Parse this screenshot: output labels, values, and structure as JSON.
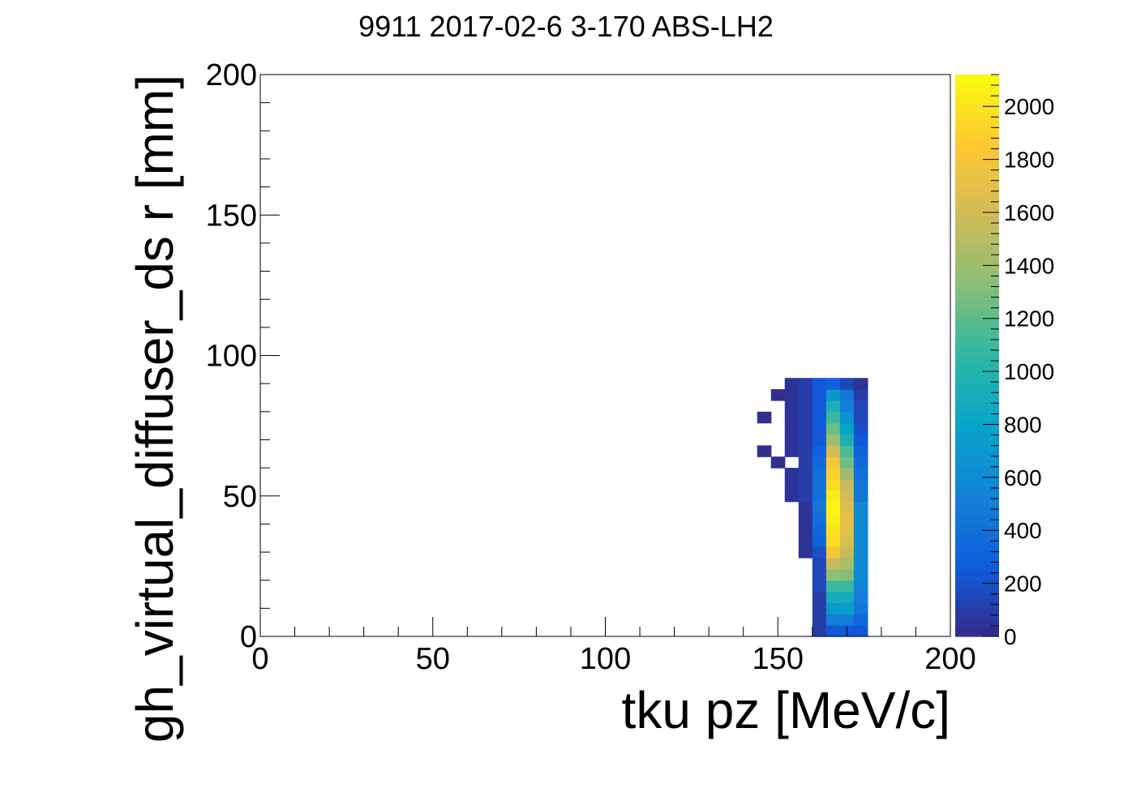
{
  "chart_data": {
    "type": "heatmap",
    "title": "9911 2017-02-6 3-170 ABS-LH2",
    "xlabel": "tku pz [MeV/c]",
    "ylabel": "gh_virtual_diffuser_ds r [mm]",
    "xlim": [
      0,
      200
    ],
    "ylim": [
      0,
      200
    ],
    "x_ticks": [
      "0",
      "50",
      "100",
      "150",
      "200"
    ],
    "y_ticks": [
      "0",
      "50",
      "100",
      "150",
      "200"
    ],
    "bin_width": 4,
    "colorbar": {
      "min": 0,
      "max": 2120,
      "ticks": [
        "0",
        "200",
        "400",
        "600",
        "800",
        "1000",
        "1200",
        "1400",
        "1600",
        "1800",
        "2000"
      ],
      "palette": [
        "#352a87",
        "#0f5cdd",
        "#1481d6",
        "#06a4ca",
        "#2eb7a4",
        "#87bf77",
        "#d1bb59",
        "#fec832",
        "#f9fb0e"
      ]
    },
    "cells": [
      {
        "x": 160,
        "y": 0,
        "v": 100
      },
      {
        "x": 164,
        "y": 0,
        "v": 250
      },
      {
        "x": 168,
        "y": 0,
        "v": 250
      },
      {
        "x": 172,
        "y": 0,
        "v": 250
      },
      {
        "x": 160,
        "y": 4,
        "v": 100
      },
      {
        "x": 164,
        "y": 4,
        "v": 500
      },
      {
        "x": 168,
        "y": 4,
        "v": 500
      },
      {
        "x": 172,
        "y": 4,
        "v": 350
      },
      {
        "x": 160,
        "y": 8,
        "v": 100
      },
      {
        "x": 164,
        "y": 8,
        "v": 700
      },
      {
        "x": 168,
        "y": 8,
        "v": 750
      },
      {
        "x": 172,
        "y": 8,
        "v": 450
      },
      {
        "x": 160,
        "y": 12,
        "v": 100
      },
      {
        "x": 164,
        "y": 12,
        "v": 900
      },
      {
        "x": 168,
        "y": 12,
        "v": 900
      },
      {
        "x": 172,
        "y": 12,
        "v": 500
      },
      {
        "x": 160,
        "y": 16,
        "v": 150
      },
      {
        "x": 164,
        "y": 16,
        "v": 1100
      },
      {
        "x": 168,
        "y": 16,
        "v": 1100
      },
      {
        "x": 172,
        "y": 16,
        "v": 550
      },
      {
        "x": 160,
        "y": 20,
        "v": 150
      },
      {
        "x": 164,
        "y": 20,
        "v": 1350
      },
      {
        "x": 168,
        "y": 20,
        "v": 1300
      },
      {
        "x": 172,
        "y": 20,
        "v": 600
      },
      {
        "x": 160,
        "y": 24,
        "v": 150
      },
      {
        "x": 164,
        "y": 24,
        "v": 1550
      },
      {
        "x": 168,
        "y": 24,
        "v": 1450
      },
      {
        "x": 172,
        "y": 24,
        "v": 600
      },
      {
        "x": 156,
        "y": 28,
        "v": 50
      },
      {
        "x": 160,
        "y": 28,
        "v": 200
      },
      {
        "x": 164,
        "y": 28,
        "v": 1800
      },
      {
        "x": 168,
        "y": 28,
        "v": 1550
      },
      {
        "x": 172,
        "y": 28,
        "v": 600
      },
      {
        "x": 156,
        "y": 32,
        "v": 50
      },
      {
        "x": 160,
        "y": 32,
        "v": 300
      },
      {
        "x": 164,
        "y": 32,
        "v": 1950
      },
      {
        "x": 168,
        "y": 32,
        "v": 1650
      },
      {
        "x": 172,
        "y": 32,
        "v": 600
      },
      {
        "x": 156,
        "y": 36,
        "v": 50
      },
      {
        "x": 160,
        "y": 36,
        "v": 350
      },
      {
        "x": 164,
        "y": 36,
        "v": 2000
      },
      {
        "x": 168,
        "y": 36,
        "v": 1700
      },
      {
        "x": 172,
        "y": 36,
        "v": 600
      },
      {
        "x": 156,
        "y": 40,
        "v": 50
      },
      {
        "x": 160,
        "y": 40,
        "v": 400
      },
      {
        "x": 164,
        "y": 40,
        "v": 2050
      },
      {
        "x": 168,
        "y": 40,
        "v": 1700
      },
      {
        "x": 172,
        "y": 40,
        "v": 600
      },
      {
        "x": 156,
        "y": 44,
        "v": 50
      },
      {
        "x": 160,
        "y": 44,
        "v": 450
      },
      {
        "x": 164,
        "y": 44,
        "v": 2100
      },
      {
        "x": 168,
        "y": 44,
        "v": 1650
      },
      {
        "x": 172,
        "y": 44,
        "v": 600
      },
      {
        "x": 152,
        "y": 48,
        "v": 50
      },
      {
        "x": 156,
        "y": 48,
        "v": 100
      },
      {
        "x": 160,
        "y": 48,
        "v": 400
      },
      {
        "x": 164,
        "y": 48,
        "v": 2050
      },
      {
        "x": 168,
        "y": 48,
        "v": 1600
      },
      {
        "x": 172,
        "y": 48,
        "v": 450
      },
      {
        "x": 152,
        "y": 52,
        "v": 50
      },
      {
        "x": 156,
        "y": 52,
        "v": 100
      },
      {
        "x": 160,
        "y": 52,
        "v": 400
      },
      {
        "x": 164,
        "y": 52,
        "v": 1950
      },
      {
        "x": 168,
        "y": 52,
        "v": 1550
      },
      {
        "x": 172,
        "y": 52,
        "v": 450
      },
      {
        "x": 152,
        "y": 56,
        "v": 50
      },
      {
        "x": 156,
        "y": 56,
        "v": 100
      },
      {
        "x": 160,
        "y": 56,
        "v": 400
      },
      {
        "x": 164,
        "y": 56,
        "v": 1900
      },
      {
        "x": 168,
        "y": 56,
        "v": 1400
      },
      {
        "x": 172,
        "y": 56,
        "v": 400
      },
      {
        "x": 148,
        "y": 60,
        "v": 20
      },
      {
        "x": 156,
        "y": 60,
        "v": 100
      },
      {
        "x": 160,
        "y": 60,
        "v": 350
      },
      {
        "x": 164,
        "y": 60,
        "v": 1800
      },
      {
        "x": 168,
        "y": 60,
        "v": 1250
      },
      {
        "x": 172,
        "y": 60,
        "v": 350
      },
      {
        "x": 144,
        "y": 64,
        "v": 20
      },
      {
        "x": 152,
        "y": 64,
        "v": 50
      },
      {
        "x": 156,
        "y": 64,
        "v": 100
      },
      {
        "x": 160,
        "y": 64,
        "v": 300
      },
      {
        "x": 164,
        "y": 64,
        "v": 1600
      },
      {
        "x": 168,
        "y": 64,
        "v": 1150
      },
      {
        "x": 172,
        "y": 64,
        "v": 300
      },
      {
        "x": 152,
        "y": 68,
        "v": 50
      },
      {
        "x": 156,
        "y": 68,
        "v": 100
      },
      {
        "x": 160,
        "y": 68,
        "v": 250
      },
      {
        "x": 164,
        "y": 68,
        "v": 1400
      },
      {
        "x": 168,
        "y": 68,
        "v": 950
      },
      {
        "x": 172,
        "y": 68,
        "v": 250
      },
      {
        "x": 152,
        "y": 72,
        "v": 50
      },
      {
        "x": 156,
        "y": 72,
        "v": 100
      },
      {
        "x": 160,
        "y": 72,
        "v": 250
      },
      {
        "x": 164,
        "y": 72,
        "v": 1250
      },
      {
        "x": 168,
        "y": 72,
        "v": 800
      },
      {
        "x": 172,
        "y": 72,
        "v": 200
      },
      {
        "x": 144,
        "y": 76,
        "v": 20
      },
      {
        "x": 152,
        "y": 76,
        "v": 50
      },
      {
        "x": 156,
        "y": 76,
        "v": 100
      },
      {
        "x": 160,
        "y": 76,
        "v": 250
      },
      {
        "x": 164,
        "y": 76,
        "v": 1100
      },
      {
        "x": 168,
        "y": 76,
        "v": 650
      },
      {
        "x": 172,
        "y": 76,
        "v": 150
      },
      {
        "x": 152,
        "y": 80,
        "v": 50
      },
      {
        "x": 156,
        "y": 80,
        "v": 100
      },
      {
        "x": 160,
        "y": 80,
        "v": 250
      },
      {
        "x": 164,
        "y": 80,
        "v": 950
      },
      {
        "x": 168,
        "y": 80,
        "v": 500
      },
      {
        "x": 172,
        "y": 80,
        "v": 150
      },
      {
        "x": 148,
        "y": 84,
        "v": 20
      },
      {
        "x": 152,
        "y": 84,
        "v": 50
      },
      {
        "x": 156,
        "y": 84,
        "v": 100
      },
      {
        "x": 160,
        "y": 84,
        "v": 250
      },
      {
        "x": 164,
        "y": 84,
        "v": 700
      },
      {
        "x": 168,
        "y": 84,
        "v": 450
      },
      {
        "x": 172,
        "y": 84,
        "v": 100
      },
      {
        "x": 152,
        "y": 88,
        "v": 50
      },
      {
        "x": 156,
        "y": 88,
        "v": 100
      },
      {
        "x": 160,
        "y": 88,
        "v": 250
      },
      {
        "x": 164,
        "y": 88,
        "v": 300
      },
      {
        "x": 168,
        "y": 88,
        "v": 150
      },
      {
        "x": 172,
        "y": 88,
        "v": 50
      }
    ]
  }
}
